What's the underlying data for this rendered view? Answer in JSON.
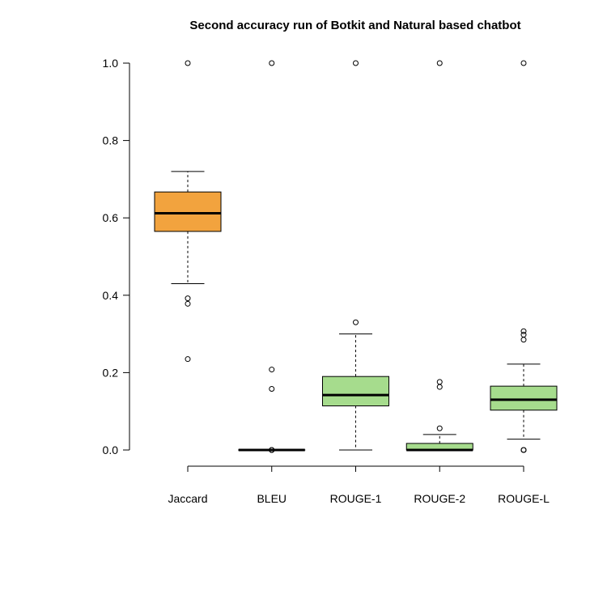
{
  "chart_data": {
    "type": "boxplot",
    "title": "Second accuracy run of Botkit and Natural based chatbot",
    "xlabel": "",
    "ylabel": "",
    "ylim": [
      0,
      1
    ],
    "y_ticks": [
      "0.0",
      "0.2",
      "0.4",
      "0.6",
      "0.8",
      "1.0"
    ],
    "grid": false,
    "categories": [
      "Jaccard",
      "BLEU",
      "ROUGE-1",
      "ROUGE-2",
      "ROUGE-L"
    ],
    "boxes": [
      {
        "name": "Jaccard",
        "color": "#F2A33E",
        "whisker_low": 0.43,
        "q1": 0.565,
        "median": 0.612,
        "q3": 0.667,
        "whisker_high": 0.72,
        "outliers": [
          0.392,
          0.378,
          0.235,
          1.0
        ]
      },
      {
        "name": "BLEU",
        "color": "#A6DC8D",
        "whisker_low": 0.0,
        "q1": 0.0,
        "median": 0.0,
        "q3": 0.0,
        "whisker_high": 0.0,
        "outliers": [
          0.0,
          0.0,
          0.0,
          0.158,
          0.208,
          1.0
        ]
      },
      {
        "name": "ROUGE-1",
        "color": "#A6DC8D",
        "whisker_low": 0.0,
        "q1": 0.114,
        "median": 0.142,
        "q3": 0.19,
        "whisker_high": 0.3,
        "outliers": [
          0.33,
          1.0
        ]
      },
      {
        "name": "ROUGE-2",
        "color": "#A6DC8D",
        "whisker_low": 0.0,
        "q1": 0.0,
        "median": 0.0,
        "q3": 0.017,
        "whisker_high": 0.04,
        "outliers": [
          0.056,
          0.163,
          0.176,
          1.0
        ]
      },
      {
        "name": "ROUGE-L",
        "color": "#A6DC8D",
        "whisker_low": 0.028,
        "q1": 0.103,
        "median": 0.13,
        "q3": 0.165,
        "whisker_high": 0.222,
        "outliers": [
          0.0,
          0.0,
          0.0,
          0.285,
          0.298,
          0.307,
          1.0
        ]
      }
    ]
  }
}
